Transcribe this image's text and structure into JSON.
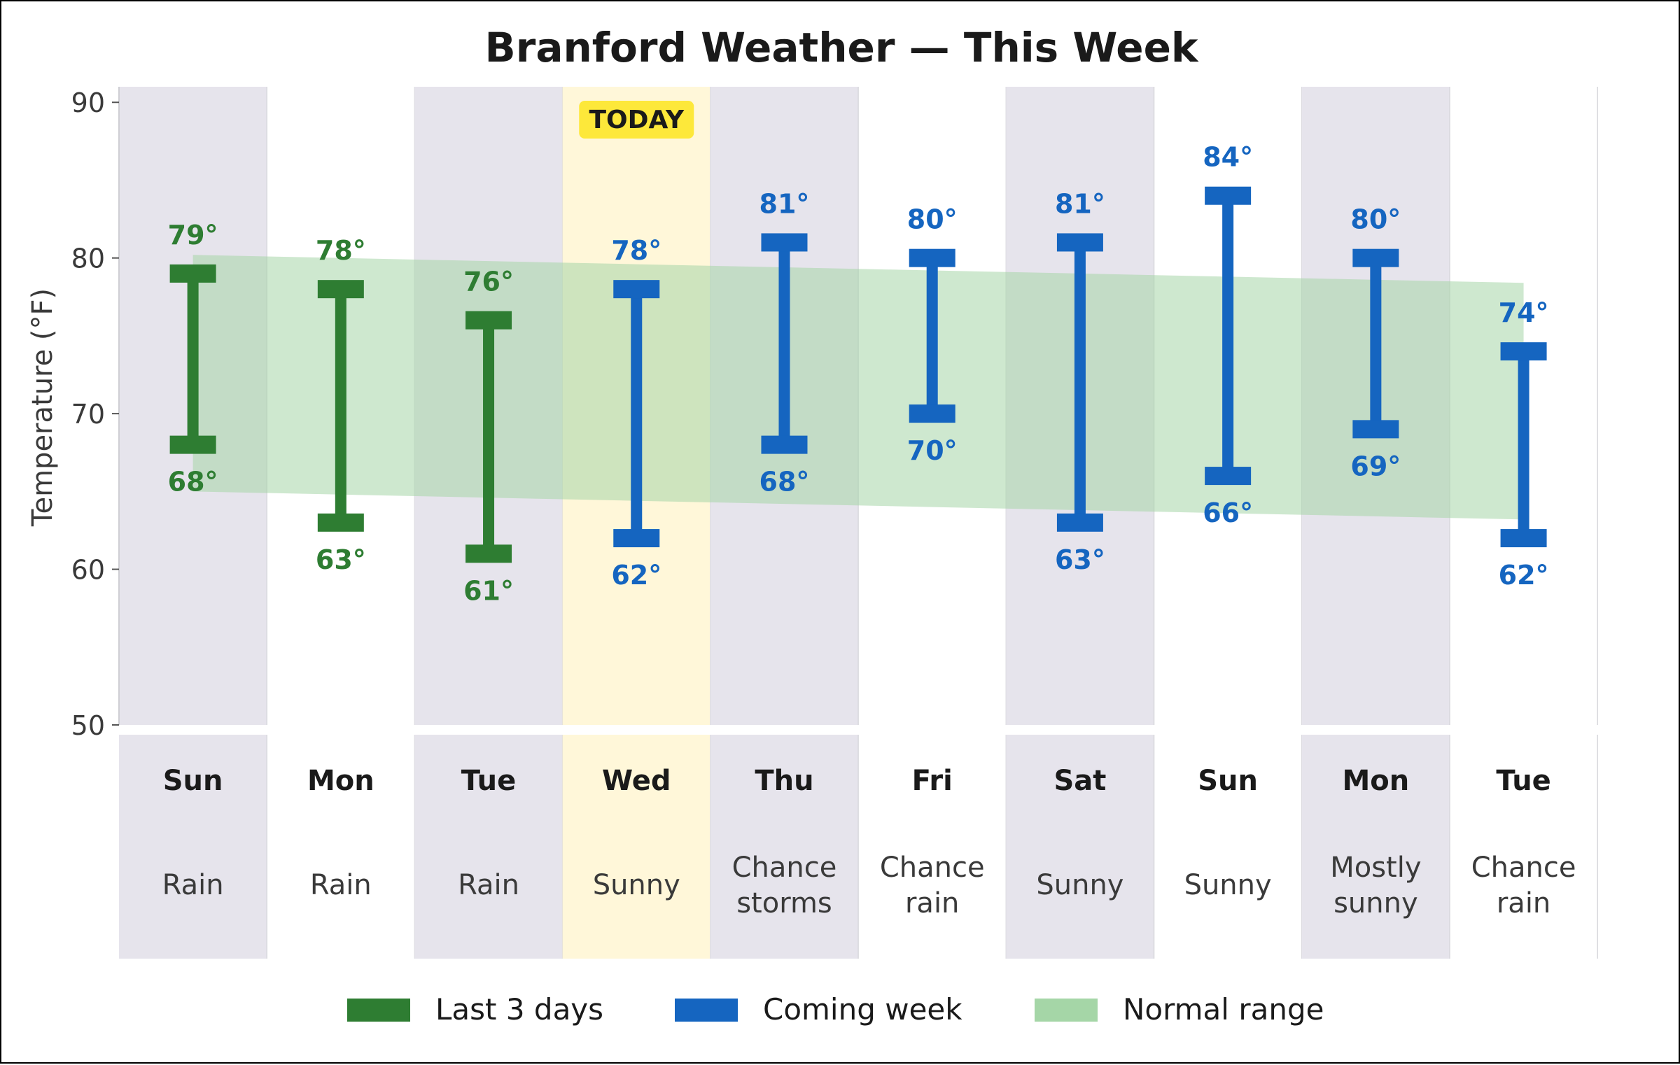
{
  "chart_data": {
    "type": "range-bar",
    "title": "Branford Weather — This Week",
    "ylabel": "Temperature (°F)",
    "ylim": [
      50,
      91
    ],
    "yticks": [
      50,
      60,
      70,
      80,
      90
    ],
    "today_label": "TODAY",
    "today_index": 3,
    "degree_suffix": "°",
    "days": [
      {
        "day": "Sun",
        "condition": [
          "Rain"
        ],
        "low": 68,
        "high": 79,
        "group": "past"
      },
      {
        "day": "Mon",
        "condition": [
          "Rain"
        ],
        "low": 63,
        "high": 78,
        "group": "past"
      },
      {
        "day": "Tue",
        "condition": [
          "Rain"
        ],
        "low": 61,
        "high": 76,
        "group": "past"
      },
      {
        "day": "Wed",
        "condition": [
          "Sunny"
        ],
        "low": 62,
        "high": 78,
        "group": "coming"
      },
      {
        "day": "Thu",
        "condition": [
          "Chance",
          "storms"
        ],
        "low": 68,
        "high": 81,
        "group": "coming"
      },
      {
        "day": "Fri",
        "condition": [
          "Chance",
          "rain"
        ],
        "low": 70,
        "high": 80,
        "group": "coming"
      },
      {
        "day": "Sat",
        "condition": [
          "Sunny"
        ],
        "low": 63,
        "high": 81,
        "group": "coming"
      },
      {
        "day": "Sun",
        "condition": [
          "Sunny"
        ],
        "low": 66,
        "high": 84,
        "group": "coming"
      },
      {
        "day": "Mon",
        "condition": [
          "Mostly",
          "sunny"
        ],
        "low": 69,
        "high": 80,
        "group": "coming"
      },
      {
        "day": "Tue",
        "condition": [
          "Chance",
          "rain"
        ],
        "low": 62,
        "high": 74,
        "group": "coming"
      }
    ],
    "normal_range": {
      "low": [
        65.0,
        64.8,
        64.6,
        64.4,
        64.2,
        64.0,
        63.8,
        63.6,
        63.4,
        63.2
      ],
      "high": [
        80.2,
        80.0,
        79.8,
        79.6,
        79.4,
        79.2,
        79.0,
        78.8,
        78.6,
        78.4
      ]
    },
    "legend": [
      {
        "key": "past",
        "label": "Last 3 days",
        "color": "#2e7d32"
      },
      {
        "key": "coming",
        "label": "Coming week",
        "color": "#1565c0"
      },
      {
        "key": "normal",
        "label": "Normal range",
        "color": "#a5d6a7"
      }
    ],
    "colors": {
      "past": "#2e7d32",
      "coming": "#1565c0",
      "normal": "#a5d6a7",
      "column_shade": "#e6e4ec",
      "today_column": "#fff7d9",
      "today_badge": "#fde83a"
    }
  }
}
